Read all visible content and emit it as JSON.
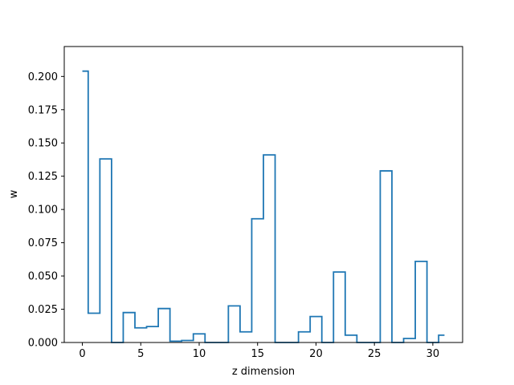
{
  "chart_data": {
    "type": "line",
    "style": "steps-mid",
    "xlabel": "z dimension",
    "ylabel": "w",
    "xlim": [
      -1.55,
      32.55
    ],
    "ylim": [
      0,
      0.2225
    ],
    "x_ticks": [
      0,
      5,
      10,
      15,
      20,
      25,
      30
    ],
    "y_ticks": [
      0.0,
      0.025,
      0.05,
      0.075,
      0.1,
      0.125,
      0.15,
      0.175,
      0.2
    ],
    "y_tick_labels": [
      "0.000",
      "0.025",
      "0.050",
      "0.075",
      "0.100",
      "0.125",
      "0.150",
      "0.175",
      "0.200"
    ],
    "grid": false,
    "series": [
      {
        "color": "#1f77b4",
        "x": [
          0,
          1,
          2,
          3,
          4,
          5,
          6,
          7,
          8,
          9,
          10,
          11,
          12,
          13,
          14,
          15,
          16,
          17,
          18,
          19,
          20,
          21,
          22,
          23,
          24,
          25,
          26,
          27,
          28,
          29,
          30,
          31
        ],
        "values": [
          0.204,
          0.022,
          0.138,
          0.0,
          0.0225,
          0.011,
          0.012,
          0.0255,
          0.001,
          0.0015,
          0.0065,
          0.0,
          0.0,
          0.0275,
          0.008,
          0.093,
          0.141,
          0.0,
          0.0,
          0.008,
          0.0195,
          0.0,
          0.053,
          0.0055,
          0.0,
          0.0,
          0.129,
          0.0,
          0.003,
          0.061,
          0.0,
          0.0055
        ]
      }
    ]
  }
}
